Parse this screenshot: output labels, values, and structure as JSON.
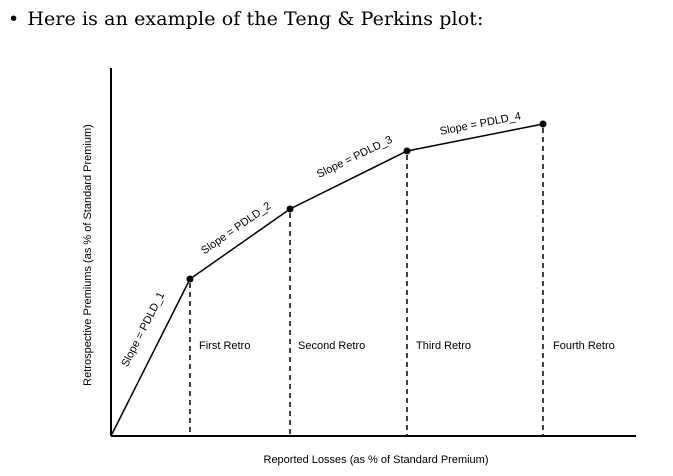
{
  "bullet": {
    "symbol": "•",
    "text": "Here is an example of the Teng & Perkins plot:"
  },
  "diagram": {
    "x_axis_title": "Reported Losses (as % of Standard Premium)",
    "y_axis_title": "Retrospective Premiums (as % of Standard Premium)",
    "slope_labels": [
      "Slope = PDLD_1",
      "Slope = PDLD_2",
      "Slope = PDLD_3",
      "Slope = PDLD_4"
    ],
    "segment_labels": [
      "First Retro",
      "Second Retro",
      "Third Retro",
      "Fourth Retro"
    ],
    "line_color": "#000000"
  }
}
